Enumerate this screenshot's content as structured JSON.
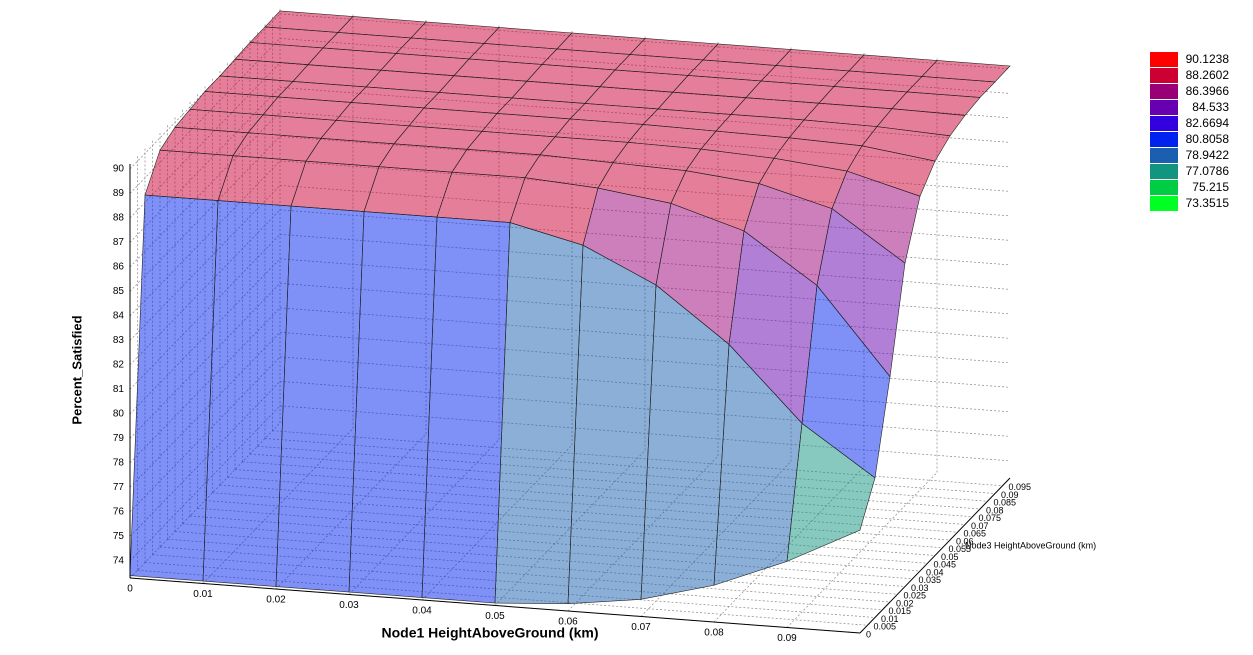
{
  "chart_data": {
    "type": "surface",
    "x_label": "Node1 HeightAboveGround (km)",
    "y_label": "Node3 HeightAboveGround (km)",
    "z_label": "Percent_Satisfied",
    "x": [
      0,
      0.01,
      0.02,
      0.03,
      0.04,
      0.05,
      0.06,
      0.07,
      0.08,
      0.09,
      0.1
    ],
    "y": [
      0,
      0.01,
      0.02,
      0.03,
      0.04,
      0.05,
      0.06,
      0.07,
      0.08,
      0.09,
      0.1
    ],
    "z": [
      [
        73.4,
        73.4,
        73.4,
        73.4,
        73.4,
        73.4,
        73.6,
        74.0,
        74.8,
        76.0,
        77.5
      ],
      [
        88.3,
        88.3,
        88.3,
        88.3,
        88.3,
        88.3,
        87.6,
        86.2,
        84.0,
        81.0,
        79.0
      ],
      [
        89.5,
        89.5,
        89.5,
        89.5,
        89.5,
        89.5,
        89.3,
        88.9,
        88.0,
        86.0,
        82.5
      ],
      [
        89.8,
        89.8,
        89.8,
        89.8,
        89.8,
        89.8,
        89.7,
        89.6,
        89.3,
        88.5,
        86.5
      ],
      [
        89.9,
        89.9,
        89.9,
        89.9,
        89.9,
        89.9,
        89.9,
        89.85,
        89.7,
        89.4,
        88.6
      ],
      [
        90.0,
        90.0,
        90.0,
        90.0,
        90.0,
        90.0,
        90.0,
        89.95,
        89.9,
        89.8,
        89.4
      ],
      [
        90.0,
        90.0,
        90.0,
        90.0,
        90.0,
        90.0,
        90.0,
        90.0,
        90.0,
        89.95,
        89.8
      ],
      [
        90.05,
        90.05,
        90.05,
        90.05,
        90.05,
        90.05,
        90.05,
        90.05,
        90.05,
        90.05,
        90.0
      ],
      [
        90.1,
        90.1,
        90.1,
        90.1,
        90.1,
        90.1,
        90.1,
        90.1,
        90.1,
        90.1,
        90.1
      ],
      [
        90.1,
        90.1,
        90.1,
        90.1,
        90.1,
        90.1,
        90.1,
        90.1,
        90.1,
        90.1,
        90.1
      ],
      [
        90.12,
        90.12,
        90.12,
        90.12,
        90.12,
        90.12,
        90.12,
        90.12,
        90.12,
        90.12,
        90.12
      ]
    ],
    "xlim": [
      0,
      0.1
    ],
    "ylim": [
      0,
      0.1
    ],
    "zlim": [
      73.3,
      90.2
    ],
    "xticks": [
      0,
      0.01,
      0.02,
      0.03,
      0.04,
      0.05,
      0.06,
      0.07,
      0.08,
      0.09
    ],
    "yticks": [
      0,
      0.005,
      0.01,
      0.015,
      0.02,
      0.025,
      0.03,
      0.035,
      0.04,
      0.045,
      0.05,
      0.055,
      0.06,
      0.065,
      0.07,
      0.075,
      0.08,
      0.085,
      0.09,
      0.095
    ],
    "zticks": [
      74,
      75,
      76,
      77,
      78,
      79,
      80,
      81,
      82,
      83,
      84,
      85,
      86,
      87,
      88,
      89,
      90
    ],
    "grid": true,
    "opacity": 0.5,
    "colorbar": {
      "levels": [
        90.1238,
        88.2602,
        86.3966,
        84.533,
        82.6694,
        80.8058,
        78.9422,
        77.0786,
        75.215,
        73.3515
      ],
      "colors": [
        "#ff0000",
        "#cc0033",
        "#990077",
        "#6600b0",
        "#3300e0",
        "#0022ee",
        "#1a5fb0",
        "#119480",
        "#00cc44",
        "#00ff22"
      ]
    }
  }
}
